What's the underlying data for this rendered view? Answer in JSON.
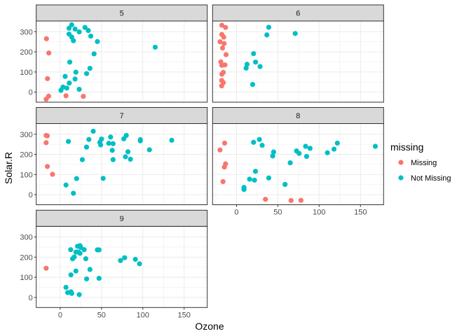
{
  "chart_data": {
    "type": "scatter",
    "facet_by": "Month",
    "xlabel": "Ozone",
    "ylabel": "Solar.R",
    "xlim": [
      -29,
      178
    ],
    "ylim": [
      -50,
      353
    ],
    "x_ticks": [
      0,
      50,
      100,
      150
    ],
    "y_ticks": [
      0,
      100,
      200,
      300
    ],
    "grid": true,
    "legend": {
      "title": "missing",
      "position": "right",
      "entries": [
        {
          "label": "Missing",
          "color": "#F8766D"
        },
        {
          "label": "Not Missing",
          "color": "#00BFC4"
        }
      ]
    },
    "panels": [
      {
        "label": "5",
        "missing": [
          [
            -16.6,
            265
          ],
          [
            -13.8,
            194
          ],
          [
            -15.4,
            67
          ],
          [
            -17,
            -35
          ],
          [
            -14,
            -20
          ],
          [
            7,
            -18
          ],
          [
            28,
            -21
          ]
        ],
        "not_missing": [
          [
            10.7,
            317
          ],
          [
            13.9,
            334
          ],
          [
            18,
            313
          ],
          [
            23,
            299
          ],
          [
            10.7,
            288
          ],
          [
            14,
            273
          ],
          [
            16,
            255
          ],
          [
            30,
            321
          ],
          [
            34,
            306
          ],
          [
            37,
            278
          ],
          [
            45,
            251
          ],
          [
            41,
            190
          ],
          [
            115,
            223
          ],
          [
            11.6,
            149
          ],
          [
            19,
            99
          ],
          [
            36,
            118
          ],
          [
            32,
            92
          ],
          [
            6,
            78
          ],
          [
            18,
            65
          ],
          [
            11,
            45
          ],
          [
            3.4,
            25
          ],
          [
            8,
            20
          ],
          [
            0.9,
            9
          ],
          [
            23,
            14
          ]
        ]
      },
      {
        "label": "6",
        "missing": [
          [
            -17.8,
            332
          ],
          [
            -13.3,
            321
          ],
          [
            -17.8,
            286
          ],
          [
            -15.5,
            273
          ],
          [
            -20,
            250
          ],
          [
            -15,
            241
          ],
          [
            -17,
            219
          ],
          [
            -12.7,
            186
          ],
          [
            -19,
            150
          ],
          [
            -17.8,
            133
          ],
          [
            -14,
            135
          ],
          [
            -17.8,
            89
          ],
          [
            -16,
            98
          ],
          [
            -18,
            58
          ],
          [
            -16,
            47
          ],
          [
            -18,
            31
          ]
        ],
        "not_missing": [
          [
            39,
            322
          ],
          [
            36.7,
            284
          ],
          [
            71,
            291
          ],
          [
            20.6,
            191
          ],
          [
            23,
            149
          ],
          [
            12.7,
            138
          ],
          [
            11.6,
            119
          ],
          [
            28.5,
            127
          ],
          [
            19.5,
            38
          ]
        ]
      },
      {
        "label": "7",
        "missing": [
          [
            -17,
            294
          ],
          [
            -15.6,
            292
          ],
          [
            -17,
            258
          ],
          [
            -15.5,
            140
          ],
          [
            -9.3,
            101
          ]
        ],
        "not_missing": [
          [
            9.9,
            264
          ],
          [
            7,
            48
          ],
          [
            16,
            7
          ],
          [
            19.8,
            80
          ],
          [
            26.8,
            174
          ],
          [
            31.9,
            236
          ],
          [
            34.7,
            274
          ],
          [
            40,
            315
          ],
          [
            48,
            260
          ],
          [
            49,
            247
          ],
          [
            50,
            276
          ],
          [
            52,
            81
          ],
          [
            58.8,
            255
          ],
          [
            61,
            286
          ],
          [
            63,
            220
          ],
          [
            64,
            253
          ],
          [
            64,
            174
          ],
          [
            77,
            277
          ],
          [
            80,
            294
          ],
          [
            79,
            188
          ],
          [
            82,
            213
          ],
          [
            85,
            176
          ],
          [
            97,
            273
          ],
          [
            97,
            267
          ],
          [
            108,
            223
          ],
          [
            135,
            270
          ]
        ]
      },
      {
        "label": "8",
        "missing": [
          [
            -14.4,
            256
          ],
          [
            -20,
            222
          ],
          [
            -13.3,
            153
          ],
          [
            -14.7,
            137
          ],
          [
            -16.4,
            65
          ],
          [
            35,
            -23
          ],
          [
            66,
            -29
          ],
          [
            78,
            -28
          ]
        ],
        "not_missing": [
          [
            20.6,
            260
          ],
          [
            27.7,
            274
          ],
          [
            31,
            245
          ],
          [
            44.9,
            212
          ],
          [
            43.8,
            192
          ],
          [
            65,
            158
          ],
          [
            22.9,
            116
          ],
          [
            15.8,
            77
          ],
          [
            21.7,
            72
          ],
          [
            39,
            83
          ],
          [
            58.7,
            51
          ],
          [
            9,
            36
          ],
          [
            9,
            26
          ],
          [
            72.6,
            217
          ],
          [
            75.7,
            205
          ],
          [
            83.6,
            240
          ],
          [
            89,
            230
          ],
          [
            84.8,
            190
          ],
          [
            110,
            208
          ],
          [
            118,
            226
          ],
          [
            122,
            256
          ],
          [
            168,
            240
          ]
        ]
      },
      {
        "label": "9",
        "missing": [
          [
            -17,
            145
          ]
        ],
        "not_missing": [
          [
            12.7,
            237
          ],
          [
            21,
            254
          ],
          [
            24,
            257
          ],
          [
            25,
            248
          ],
          [
            19,
            225
          ],
          [
            22,
            225
          ],
          [
            24,
            219
          ],
          [
            29,
            237
          ],
          [
            17,
            201
          ],
          [
            15,
            192
          ],
          [
            31,
            192
          ],
          [
            45,
            236
          ],
          [
            47,
            236
          ],
          [
            73,
            183
          ],
          [
            78,
            197
          ],
          [
            91,
            189
          ],
          [
            96,
            167
          ],
          [
            19,
            131
          ],
          [
            13,
            112
          ],
          [
            36,
            139
          ],
          [
            32,
            92
          ],
          [
            47,
            95
          ],
          [
            7,
            50
          ],
          [
            9,
            24
          ],
          [
            13,
            28
          ],
          [
            14,
            20
          ],
          [
            23,
            14
          ]
        ]
      }
    ]
  }
}
